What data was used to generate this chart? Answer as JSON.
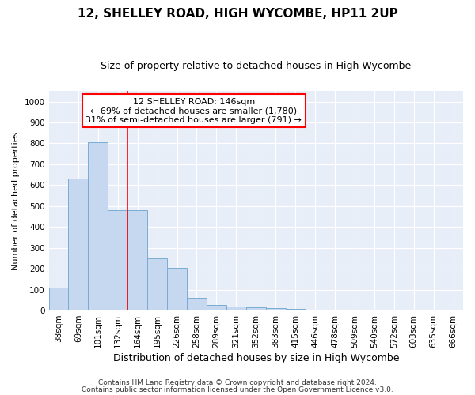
{
  "title1": "12, SHELLEY ROAD, HIGH WYCOMBE, HP11 2UP",
  "title2": "Size of property relative to detached houses in High Wycombe",
  "xlabel": "Distribution of detached houses by size in High Wycombe",
  "ylabel": "Number of detached properties",
  "footer1": "Contains HM Land Registry data © Crown copyright and database right 2024.",
  "footer2": "Contains public sector information licensed under the Open Government Licence v3.0.",
  "categories": [
    "38sqm",
    "69sqm",
    "101sqm",
    "132sqm",
    "164sqm",
    "195sqm",
    "226sqm",
    "258sqm",
    "289sqm",
    "321sqm",
    "352sqm",
    "383sqm",
    "415sqm",
    "446sqm",
    "478sqm",
    "509sqm",
    "540sqm",
    "572sqm",
    "603sqm",
    "635sqm",
    "666sqm"
  ],
  "values": [
    110,
    630,
    805,
    480,
    480,
    250,
    205,
    62,
    28,
    18,
    15,
    10,
    8,
    0,
    0,
    0,
    0,
    0,
    0,
    0,
    0
  ],
  "bar_color": "#c5d8ef",
  "bar_edge_color": "#7aadd4",
  "red_line_x": 3.5,
  "annotation_line1": "12 SHELLEY ROAD: 146sqm",
  "annotation_line2": "← 69% of detached houses are smaller (1,780)",
  "annotation_line3": "31% of semi-detached houses are larger (791) →",
  "ylim": [
    0,
    1050
  ],
  "yticks": [
    0,
    100,
    200,
    300,
    400,
    500,
    600,
    700,
    800,
    900,
    1000
  ],
  "background_color": "#e8eef8",
  "grid_color": "#ffffff",
  "title1_fontsize": 11,
  "title2_fontsize": 9,
  "ylabel_fontsize": 8,
  "xlabel_fontsize": 9,
  "tick_fontsize": 7.5,
  "footer_fontsize": 6.5
}
